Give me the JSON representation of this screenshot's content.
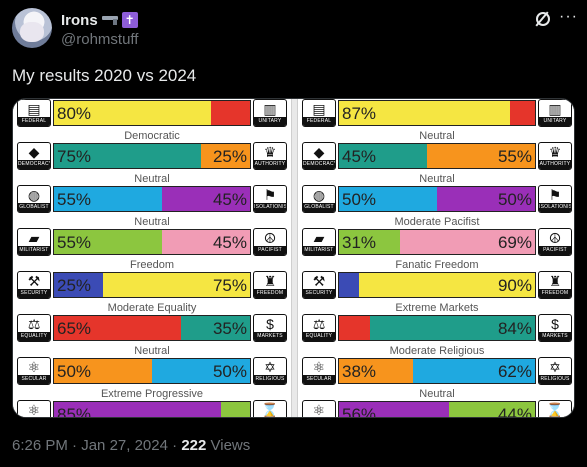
{
  "tweet": {
    "display_name": "Irons",
    "handle": "@rohmstuff",
    "text": "My results 2020 vs 2024",
    "time": "6:26 PM",
    "date": "Jan 27, 2024",
    "views_count": "222",
    "views_label": "Views",
    "icons": [
      "gun-icon",
      "cross-icon",
      "grok-icon",
      "more-icon"
    ]
  },
  "results_2020": [
    {
      "label": "",
      "left_pct": 80,
      "left_text": "80%",
      "right_text": "",
      "left_color": "#f5e642",
      "right_color": "#e5352b",
      "left_icon": "FEDERAL",
      "right_icon": "UNITARY",
      "left_glyph": "▤",
      "right_glyph": "▥"
    },
    {
      "label": "Democratic",
      "left_pct": 75,
      "left_text": "75%",
      "right_text": "25%",
      "left_color": "#1f9d8a",
      "right_color": "#f7941d",
      "left_icon": "DEMOCRACY",
      "right_icon": "AUTHORITY",
      "left_glyph": "◆",
      "right_glyph": "♛"
    },
    {
      "label": "Neutral",
      "left_pct": 55,
      "left_text": "55%",
      "right_text": "45%",
      "left_color": "#1fa9e0",
      "right_color": "#9a2fb8",
      "left_icon": "GLOBALIST",
      "right_icon": "ISOLATIONIST",
      "left_glyph": "◍",
      "right_glyph": "⚑"
    },
    {
      "label": "Neutral",
      "left_pct": 55,
      "left_text": "55%",
      "right_text": "45%",
      "left_color": "#8cc63f",
      "right_color": "#f19cb5",
      "left_icon": "MILITARIST",
      "right_icon": "PACIFIST",
      "left_glyph": "▰",
      "right_glyph": "☮"
    },
    {
      "label": "Freedom",
      "left_pct": 25,
      "left_text": "25%",
      "right_text": "75%",
      "left_color": "#3b4bb5",
      "right_color": "#f5e642",
      "left_icon": "SECURITY",
      "right_icon": "FREEDOM",
      "left_glyph": "⚒",
      "right_glyph": "♜"
    },
    {
      "label": "Moderate Equality",
      "left_pct": 65,
      "left_text": "65%",
      "right_text": "35%",
      "left_color": "#e5352b",
      "right_color": "#1f9d8a",
      "left_icon": "EQUALITY",
      "right_icon": "MARKETS",
      "left_glyph": "⚖",
      "right_glyph": "$"
    },
    {
      "label": "Neutral",
      "left_pct": 50,
      "left_text": "50%",
      "right_text": "50%",
      "left_color": "#f7941d",
      "right_color": "#1fa9e0",
      "left_icon": "SECULAR",
      "right_icon": "RELIGIOUS",
      "left_glyph": "⚛",
      "right_glyph": "✡"
    },
    {
      "label": "Extreme Progressive",
      "left_pct": 85,
      "left_text": "85%",
      "right_text": "",
      "left_color": "#9a2fb8",
      "right_color": "#8cc63f",
      "left_icon": "PROGRESS",
      "right_icon": "TRADITION",
      "left_glyph": "⚛",
      "right_glyph": "⌛"
    }
  ],
  "results_2024": [
    {
      "label": "",
      "left_pct": 87,
      "left_text": "87%",
      "right_text": "",
      "left_color": "#f5e642",
      "right_color": "#e5352b",
      "left_icon": "FEDERAL",
      "right_icon": "UNITARY",
      "left_glyph": "▤",
      "right_glyph": "▥"
    },
    {
      "label": "Neutral",
      "left_pct": 45,
      "left_text": "45%",
      "right_text": "55%",
      "left_color": "#1f9d8a",
      "right_color": "#f7941d",
      "left_icon": "DEMOCRACY",
      "right_icon": "AUTHORITY",
      "left_glyph": "◆",
      "right_glyph": "♛"
    },
    {
      "label": "Neutral",
      "left_pct": 50,
      "left_text": "50%",
      "right_text": "50%",
      "left_color": "#1fa9e0",
      "right_color": "#9a2fb8",
      "left_icon": "GLOBALIST",
      "right_icon": "ISOLATIONIST",
      "left_glyph": "◍",
      "right_glyph": "⚑"
    },
    {
      "label": "Moderate Pacifist",
      "left_pct": 31,
      "left_text": "31%",
      "right_text": "69%",
      "left_color": "#8cc63f",
      "right_color": "#f19cb5",
      "left_icon": "MILITARIST",
      "right_icon": "PACIFIST",
      "left_glyph": "▰",
      "right_glyph": "☮"
    },
    {
      "label": "Fanatic Freedom",
      "left_pct": 10,
      "left_text": "",
      "right_text": "90%",
      "left_color": "#3b4bb5",
      "right_color": "#f5e642",
      "left_icon": "SECURITY",
      "right_icon": "FREEDOM",
      "left_glyph": "⚒",
      "right_glyph": "♜"
    },
    {
      "label": "Extreme Markets",
      "left_pct": 16,
      "left_text": "",
      "right_text": "84%",
      "left_color": "#e5352b",
      "right_color": "#1f9d8a",
      "left_icon": "EQUALITY",
      "right_icon": "MARKETS",
      "left_glyph": "⚖",
      "right_glyph": "$"
    },
    {
      "label": "Moderate Religious",
      "left_pct": 38,
      "left_text": "38%",
      "right_text": "62%",
      "left_color": "#f7941d",
      "right_color": "#1fa9e0",
      "left_icon": "SECULAR",
      "right_icon": "RELIGIOUS",
      "left_glyph": "⚛",
      "right_glyph": "✡"
    },
    {
      "label": "Neutral",
      "left_pct": 56,
      "left_text": "56%",
      "right_text": "44%",
      "left_color": "#9a2fb8",
      "right_color": "#8cc63f",
      "left_icon": "PROGRESS",
      "right_icon": "TRADITION",
      "left_glyph": "⚛",
      "right_glyph": "⌛"
    }
  ]
}
